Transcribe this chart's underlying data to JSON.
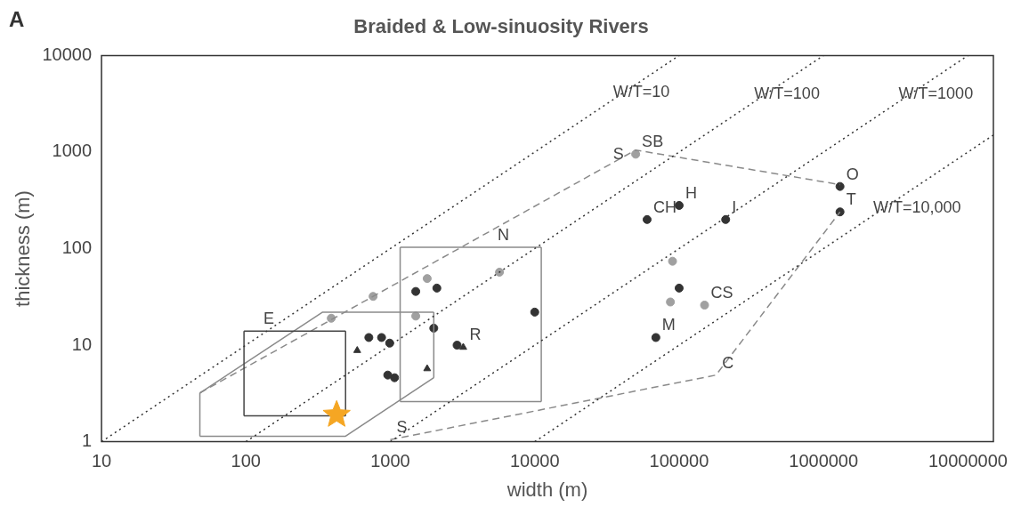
{
  "chart_data": {
    "type": "scatter",
    "title": "Braided & Low-sinuosity Rivers",
    "xlabel": "width (m)",
    "ylabel": "thickness (m)",
    "log": "xy",
    "grid": false,
    "legend": false,
    "xlim": [
      10,
      15000000
    ],
    "ylim": [
      1,
      10000
    ],
    "xticks": [
      10,
      100,
      1000,
      10000,
      100000,
      1000000,
      10000000
    ],
    "yticks": [
      1,
      10,
      100,
      1000,
      10000
    ],
    "series": [
      {
        "type": "line",
        "color": "#333333",
        "line_style": "dotted",
        "x": [
          10,
          100000
        ],
        "values": [
          1,
          10000
        ]
      },
      {
        "type": "line",
        "color": "#333333",
        "line_style": "dotted",
        "x": [
          100,
          1000000
        ],
        "values": [
          1,
          10000
        ]
      },
      {
        "type": "line",
        "color": "#333333",
        "line_style": "dotted",
        "x": [
          1000,
          10000000
        ],
        "values": [
          1,
          10000
        ]
      },
      {
        "type": "line",
        "color": "#333333",
        "line_style": "dotted",
        "x": [
          10000,
          15000000
        ],
        "values": [
          1,
          1500
        ]
      },
      {
        "type": "line",
        "color": "#8a8a8a",
        "line_style": "solid",
        "x": [
          1170,
          11100
        ],
        "values": [
          103,
          103
        ]
      },
      {
        "type": "line",
        "color": "#8a8a8a",
        "line_style": "solid",
        "x": [
          1170,
          11100
        ],
        "values": [
          2.6,
          2.6
        ]
      },
      {
        "type": "line",
        "color": "#8a8a8a",
        "line_style": "solid",
        "x": [
          1170,
          1170
        ],
        "values": [
          2.6,
          103
        ]
      },
      {
        "type": "line",
        "color": "#8a8a8a",
        "line_style": "solid",
        "x": [
          11100,
          11100
        ],
        "values": [
          2.6,
          103
        ]
      },
      {
        "type": "line",
        "color": "#444444",
        "line_style": "solid",
        "x": [
          97,
          490
        ],
        "values": [
          14,
          14
        ]
      },
      {
        "type": "line",
        "color": "#444444",
        "line_style": "solid",
        "x": [
          97,
          490
        ],
        "values": [
          1.85,
          1.85
        ]
      },
      {
        "type": "line",
        "color": "#444444",
        "line_style": "solid",
        "x": [
          97,
          97
        ],
        "values": [
          1.85,
          14
        ]
      },
      {
        "type": "line",
        "color": "#444444",
        "line_style": "solid",
        "x": [
          490,
          490
        ],
        "values": [
          1.85,
          14
        ]
      },
      {
        "type": "line",
        "color": "#8a8a8a",
        "line_style": "solid",
        "x": [
          48,
          340,
          2000
        ],
        "values": [
          3.2,
          22,
          22
        ]
      },
      {
        "type": "line",
        "color": "#8a8a8a",
        "line_style": "solid",
        "x": [
          48,
          490,
          2000
        ],
        "values": [
          1.14,
          1.14,
          4.6
        ]
      },
      {
        "type": "line",
        "color": "#8a8a8a",
        "line_style": "solid",
        "x": [
          48,
          48
        ],
        "values": [
          1.14,
          3.2
        ]
      },
      {
        "type": "line",
        "color": "#8a8a8a",
        "line_style": "solid",
        "x": [
          2000,
          2000
        ],
        "values": [
          4.6,
          22
        ]
      },
      {
        "type": "line",
        "color": "#8a8a8a",
        "line_style": "dashed",
        "x": [
          48,
          50000,
          1300000
        ],
        "values": [
          3.2,
          1050,
          460
        ]
      },
      {
        "type": "line",
        "color": "#8a8a8a",
        "line_style": "dashed",
        "x": [
          1000,
          180000,
          1300000
        ],
        "values": [
          1.05,
          4.9,
          240
        ]
      },
      {
        "color": "#333333",
        "marker": "circle",
        "x": [
          710,
          870,
          990,
          2100,
          2000,
          2900,
          960,
          1070,
          10000,
          1500,
          60000,
          100000,
          210000,
          100000,
          69000,
          1300000,
          1300000
        ],
        "values": [
          12,
          12,
          10.5,
          39,
          15,
          10,
          4.9,
          4.6,
          22,
          36,
          200,
          280,
          200,
          39,
          12,
          440,
          240
        ]
      },
      {
        "color": "#a0a0a0",
        "marker": "circle",
        "x": [
          760,
          390,
          1800,
          1500,
          5700,
          50000,
          90000,
          87000,
          150000
        ],
        "values": [
          32,
          19,
          49,
          20,
          57,
          950,
          74,
          28,
          26
        ]
      },
      {
        "color": "#333333",
        "marker": "triangle",
        "x": [
          590,
          1800,
          3200
        ],
        "values": [
          8.8,
          5.7,
          9.5
        ]
      },
      {
        "color": "#f5a623",
        "marker": "star",
        "x": [
          425
        ],
        "values": [
          1.9
        ]
      }
    ],
    "annotations": [
      "A",
      {
        "text": "W/T=10",
        "x": 31600,
        "y": 3160
      },
      {
        "text": "W/T=100",
        "x": 300000,
        "y": 3000
      },
      {
        "text": "W/T=1000",
        "x": 3000000,
        "y": 3000
      },
      {
        "text": "W/T=10,000",
        "x": 2000000,
        "y": 200
      },
      {
        "text": "S",
        "x": 31600,
        "y": 716
      },
      {
        "text": "SB",
        "x": 50000,
        "y": 950
      },
      {
        "text": "H",
        "x": 100000,
        "y": 280
      },
      {
        "text": "CH",
        "x": 60000,
        "y": 200
      },
      {
        "text": "I",
        "x": 210000,
        "y": 200
      },
      {
        "text": "CS",
        "x": 150000,
        "y": 26
      },
      {
        "text": "M",
        "x": 69000,
        "y": 12
      },
      {
        "text": "C",
        "x": 180000,
        "y": 4.9
      },
      {
        "text": "O",
        "x": 1300000,
        "y": 440
      },
      {
        "text": "T",
        "x": 1300000,
        "y": 240
      },
      {
        "text": "N",
        "x": 5000,
        "y": 103
      },
      {
        "text": "E",
        "x": 120,
        "y": 14
      },
      {
        "text": "R",
        "x": 3200,
        "y": 9.5
      },
      {
        "text": "S",
        "x": 1000,
        "y": 1.05
      }
    ]
  }
}
